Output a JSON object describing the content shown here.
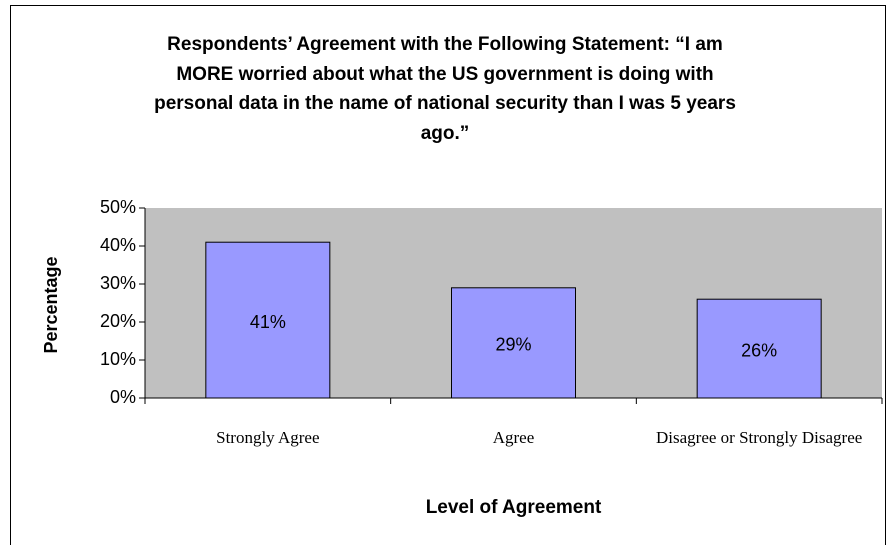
{
  "chart_data": {
    "type": "bar",
    "title": "Respondents’ Agreement with the Following Statement: “I am MORE worried about what the US government is doing with personal data in the name of national security than I was 5 years ago.”",
    "x_label": "Level of Agreement",
    "y_label": "Percentage",
    "categories": [
      "Strongly Agree",
      "Agree",
      "Disagree or Strongly Disagree"
    ],
    "values": [
      41,
      29,
      26
    ],
    "value_labels": [
      "41%",
      "29%",
      "26%"
    ],
    "color": "#9999ff",
    "plot_background": "#c0c0c0",
    "ylim": [
      0,
      50
    ],
    "yticks": [
      {
        "value": 0,
        "label": "0%"
      },
      {
        "value": 10,
        "label": "10%"
      },
      {
        "value": 20,
        "label": "20%"
      },
      {
        "value": 30,
        "label": "30%"
      },
      {
        "value": 40,
        "label": "40%"
      },
      {
        "value": 50,
        "label": "50%"
      }
    ],
    "grid": false
  }
}
